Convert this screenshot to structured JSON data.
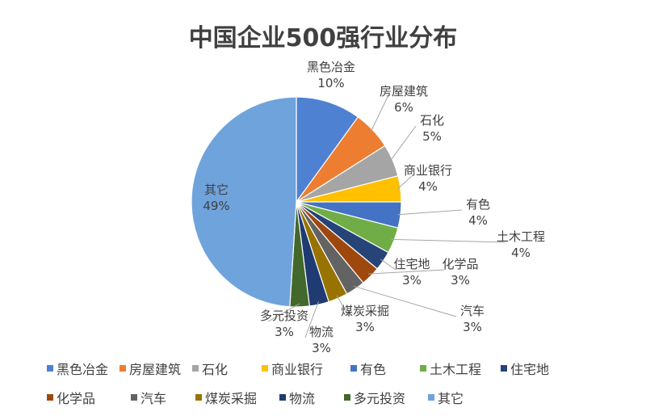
{
  "chart_data": {
    "type": "pie",
    "title": "中国企业500强行业分布",
    "legend_position": "bottom",
    "slices": [
      {
        "name": "黑色冶金",
        "value": 10,
        "label": "10%",
        "color": "#4f81d2"
      },
      {
        "name": "房屋建筑",
        "value": 6,
        "label": "6%",
        "color": "#ed7d31"
      },
      {
        "name": "石化",
        "value": 5,
        "label": "5%",
        "color": "#a5a5a5"
      },
      {
        "name": "商业银行",
        "value": 4,
        "label": "4%",
        "color": "#ffc000"
      },
      {
        "name": "有色",
        "value": 4,
        "label": "4%",
        "color": "#4472c4"
      },
      {
        "name": "土木工程",
        "value": 4,
        "label": "4%",
        "color": "#70ad47"
      },
      {
        "name": "住宅地",
        "value": 3,
        "label": "3%",
        "color": "#264478"
      },
      {
        "name": "化学品",
        "value": 3,
        "label": "3%",
        "color": "#9e480e"
      },
      {
        "name": "汽车",
        "value": 3,
        "label": "3%",
        "color": "#636363"
      },
      {
        "name": "煤炭采掘",
        "value": 3,
        "label": "3%",
        "color": "#997300"
      },
      {
        "name": "物流",
        "value": 3,
        "label": "3%",
        "color": "#1f3b72"
      },
      {
        "name": "多元投资",
        "value": 3,
        "label": "3%",
        "color": "#43682b"
      },
      {
        "name": "其它",
        "value": 49,
        "label": "49%",
        "color": "#6fa3dc"
      }
    ]
  }
}
